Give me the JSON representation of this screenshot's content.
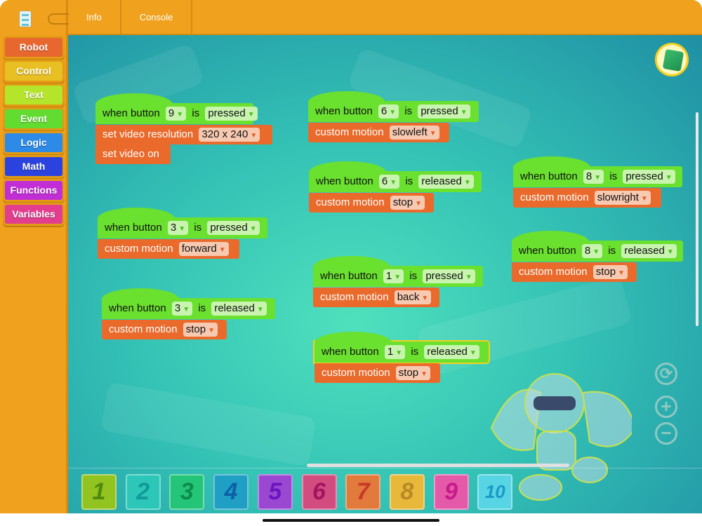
{
  "topbar": {
    "tabs": [
      "Info",
      "Console"
    ]
  },
  "sidebar": {
    "categories": [
      {
        "label": "Robot",
        "color": "#e8672f"
      },
      {
        "label": "Control",
        "color": "#e8c024"
      },
      {
        "label": "Text",
        "color": "#b5e52a"
      },
      {
        "label": "Event",
        "color": "#62dc30"
      },
      {
        "label": "Logic",
        "color": "#2d8ae6"
      },
      {
        "label": "Math",
        "color": "#2b43de"
      },
      {
        "label": "Functions",
        "color": "#c22ed6"
      },
      {
        "label": "Variables",
        "color": "#e23d8f"
      }
    ]
  },
  "blocks": [
    {
      "button": "9",
      "event": "pressed",
      "commands": [
        [
          "set video resolution",
          "320 x 240"
        ],
        [
          "set video on",
          null
        ]
      ]
    },
    {
      "button": "3",
      "event": "pressed",
      "commands": [
        [
          "custom motion",
          "forward"
        ]
      ]
    },
    {
      "button": "3",
      "event": "released",
      "commands": [
        [
          "custom motion",
          "stop"
        ]
      ]
    },
    {
      "button": "6",
      "event": "pressed",
      "commands": [
        [
          "custom motion",
          "slowleft"
        ]
      ]
    },
    {
      "button": "6",
      "event": "released",
      "commands": [
        [
          "custom motion",
          "stop"
        ]
      ]
    },
    {
      "button": "1",
      "event": "pressed",
      "commands": [
        [
          "custom motion",
          "back"
        ]
      ]
    },
    {
      "button": "1",
      "event": "released",
      "selected": true,
      "commands": [
        [
          "custom motion",
          "stop"
        ]
      ]
    },
    {
      "button": "8",
      "event": "pressed",
      "commands": [
        [
          "custom motion",
          "slowright"
        ]
      ]
    },
    {
      "button": "8",
      "event": "released",
      "commands": [
        [
          "custom motion",
          "stop"
        ]
      ]
    }
  ],
  "labels": {
    "when_button": "when button",
    "is": "is",
    "dropdown_arrow": "▼"
  },
  "controls": {
    "reset": "⟳",
    "zoom_in": "+",
    "zoom_out": "−"
  },
  "tray": {
    "slots": [
      {
        "label": "1",
        "bg": "#93c31f",
        "fg": "#4f8a10"
      },
      {
        "label": "2",
        "bg": "#2cc7b8",
        "fg": "#109a9a"
      },
      {
        "label": "3",
        "bg": "#25c579",
        "fg": "#0d8c4c"
      },
      {
        "label": "4",
        "bg": "#1f9fc4",
        "fg": "#0d5fa8"
      },
      {
        "label": "5",
        "bg": "#9a48d2",
        "fg": "#6a16c0"
      },
      {
        "label": "6",
        "bg": "#d24c80",
        "fg": "#a01560"
      },
      {
        "label": "7",
        "bg": "#e27a3c",
        "fg": "#c83a28"
      },
      {
        "label": "8",
        "bg": "#e8b83a",
        "fg": "#b88a25"
      },
      {
        "label": "9",
        "bg": "#e45aa8",
        "fg": "#c81a8a"
      },
      {
        "label": "10",
        "bg": "#58d5e5",
        "fg": "#1a9ac8"
      }
    ]
  }
}
